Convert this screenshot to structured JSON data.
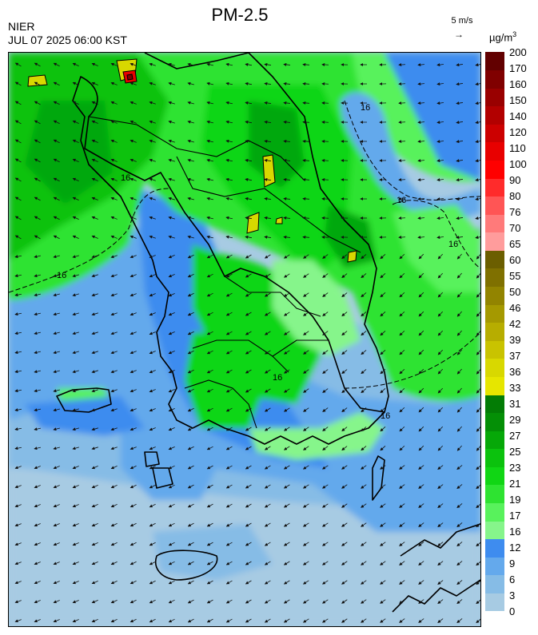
{
  "header": {
    "title": "PM-2.5",
    "organization": "NIER",
    "datetime": "JUL 07 2025 06:00 KST",
    "wind_reference": "5 m/s",
    "unit_base": "µg/m",
    "unit_exp": "3"
  },
  "legend": {
    "colors": [
      "#a7cbe3",
      "#86bce6",
      "#64a9ec",
      "#3e8cef",
      "#86f58b",
      "#58f25c",
      "#2ee331",
      "#10d614",
      "#0bc20d",
      "#06a808",
      "#048f06",
      "#037c05",
      "#e6e600",
      "#d8d800",
      "#c9c300",
      "#b7ad00",
      "#a59900",
      "#928400",
      "#7f7000",
      "#6b5e00",
      "#ff9c9c",
      "#ff7a7a",
      "#ff5555",
      "#ff2b2b",
      "#ff0000",
      "#e80000",
      "#cc0000",
      "#b20000",
      "#990000",
      "#800000",
      "#620000"
    ],
    "labels": [
      "0",
      "3",
      "6",
      "9",
      "12",
      "16",
      "17",
      "19",
      "21",
      "23",
      "25",
      "27",
      "29",
      "31",
      "33",
      "36",
      "37",
      "39",
      "42",
      "46",
      "50",
      "55",
      "60",
      "65",
      "70",
      "76",
      "80",
      "90",
      "100",
      "110",
      "120",
      "140",
      "150",
      "160",
      "170",
      "200"
    ]
  },
  "map": {
    "contour_label": "16"
  }
}
